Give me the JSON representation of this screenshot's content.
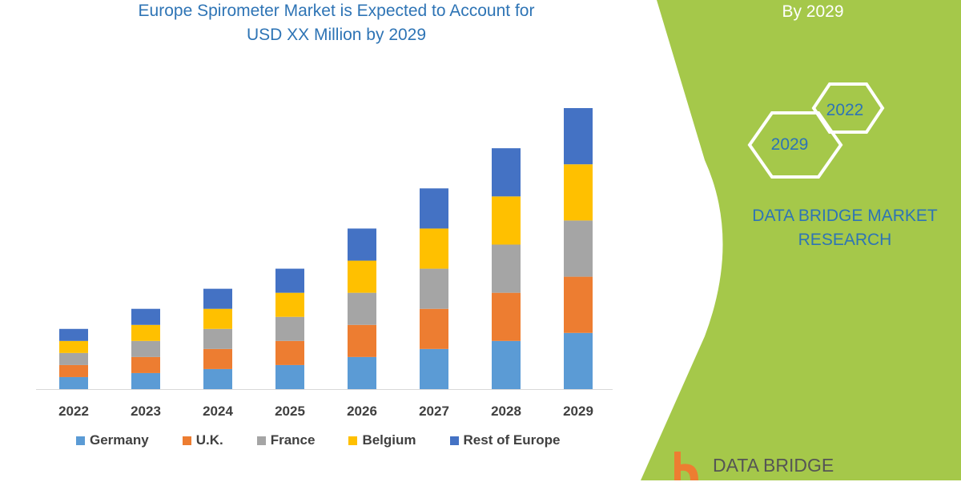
{
  "title_line1": "Europe Spirometer Market is Expected to Account for",
  "title_line2": "USD XX Million by 2029",
  "side": {
    "by": "By 2029",
    "hex_2022": "2022",
    "hex_2029": "2029",
    "brand_line1": "DATA BRIDGE MARKET",
    "brand_line2": "RESEARCH",
    "logo_text": "DATA BRIDGE",
    "accent": "#a5c84a"
  },
  "chart_data": {
    "type": "bar",
    "stacked": true,
    "title": "Europe Spirometer Market is Expected to Account for USD XX Million by 2029",
    "categories": [
      "2022",
      "2023",
      "2024",
      "2025",
      "2026",
      "2027",
      "2028",
      "2029"
    ],
    "series": [
      {
        "name": "Germany",
        "color": "#5b9bd5",
        "values": [
          1.5,
          2,
          2.5,
          3,
          4,
          5,
          6,
          7
        ]
      },
      {
        "name": "U.K.",
        "color": "#ed7d31",
        "values": [
          1.5,
          2,
          2.5,
          3,
          4,
          5,
          6,
          7
        ]
      },
      {
        "name": "France",
        "color": "#a5a5a5",
        "values": [
          1.5,
          2,
          2.5,
          3,
          4,
          5,
          6,
          7
        ]
      },
      {
        "name": "Belgium",
        "color": "#ffc000",
        "values": [
          1.5,
          2,
          2.5,
          3,
          4,
          5,
          6,
          7
        ]
      },
      {
        "name": "Rest of Europe",
        "color": "#4472c4",
        "values": [
          1.5,
          2,
          2.5,
          3,
          4,
          5,
          6,
          7
        ]
      }
    ],
    "ylim": [
      0,
      35
    ],
    "grid": false,
    "legend": "bottom",
    "y_axis_shown": false
  }
}
